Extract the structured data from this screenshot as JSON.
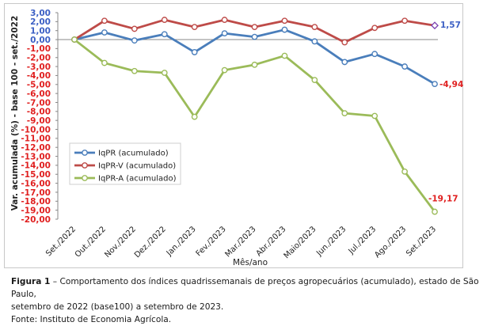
{
  "chart_data": {
    "type": "line",
    "categories": [
      "Set./2022",
      "Out./2022",
      "Nov./2022",
      "Dez./2022",
      "Jan./2023",
      "Fev./2023",
      "Mar./2023",
      "Abr./2023",
      "Maio/2023",
      "Jun./2023",
      "Jul./2023",
      "Ago./2023",
      "Set./2023"
    ],
    "series": [
      {
        "name": "IqPR (acumulado)",
        "color": "#4a7ebb",
        "values": [
          0.0,
          0.8,
          -0.1,
          0.6,
          -1.4,
          0.7,
          0.3,
          1.1,
          -0.2,
          -2.5,
          -1.6,
          -3.0,
          -4.94
        ]
      },
      {
        "name": "IqPR-V  (acumulado)",
        "color": "#be4b48",
        "values": [
          0.0,
          2.1,
          1.2,
          2.2,
          1.4,
          2.2,
          1.4,
          2.1,
          1.4,
          -0.3,
          1.3,
          2.1,
          1.57
        ]
      },
      {
        "name": "IqPR-A  (acumulado)",
        "color": "#9bbb59",
        "values": [
          0.0,
          -2.6,
          -3.5,
          -3.7,
          -8.6,
          -3.4,
          -2.8,
          -1.8,
          -4.5,
          -8.2,
          -8.5,
          -14.7,
          -19.17
        ]
      }
    ],
    "data_labels": [
      "1,57",
      "-4,94",
      "-19,17"
    ],
    "ylabel": "Var. acumulada (%) - base 100 - set./2022",
    "xlabel": "Mês/ano",
    "ylim": [
      -20,
      3
    ],
    "yticks": [
      "3,00",
      "2,00",
      "1,00",
      "0,00",
      "-1,00",
      "-2,00",
      "-3,00",
      "-4,00",
      "-5,00",
      "-6,00",
      "-7,00",
      "-8,00",
      "-9,00",
      "-10,00",
      "-11,00",
      "-12,00",
      "-13,00",
      "-14,00",
      "-15,00",
      "-16,00",
      "-17,00",
      "-18,00",
      "-19,00",
      "-20,00"
    ],
    "legend_position": "bottom-left",
    "grid": false
  },
  "caption": {
    "label": "Figura 1",
    "line1": " – Comportamento dos índices quadrissemanais de preços agropecuários (acumulado), estado de São Paulo,",
    "line2": "setembro de 2022 (base100) a setembro de 2023.",
    "line3": "Fonte: Instituto de Economia Agrícola."
  }
}
